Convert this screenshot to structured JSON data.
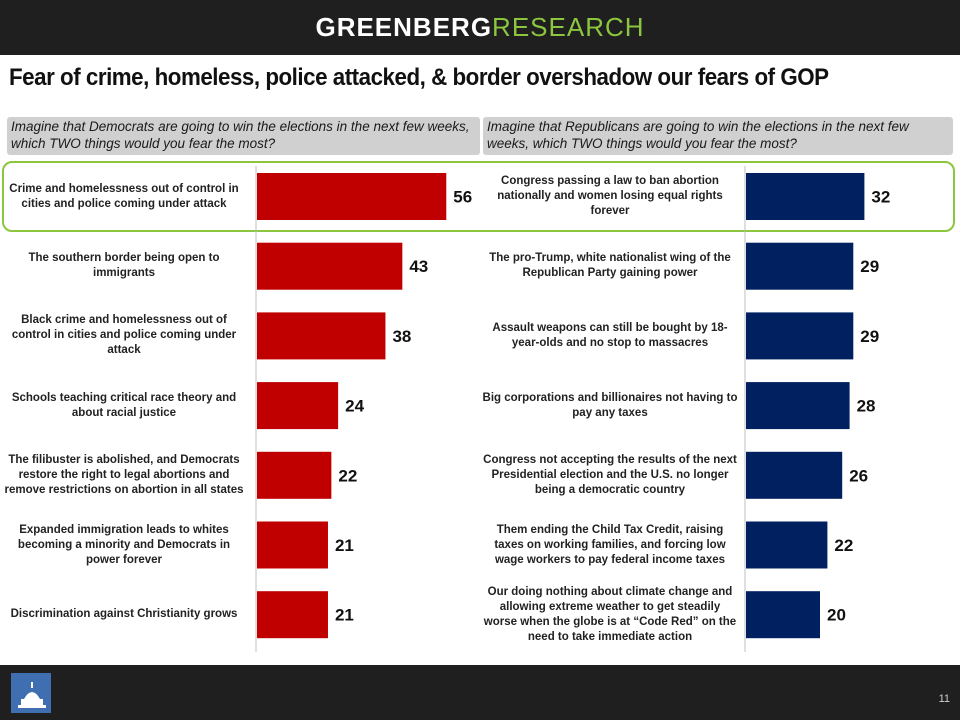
{
  "brand": {
    "part1": "GREENBERG",
    "part2": "RESEARCH"
  },
  "title": "Fear of crime, homeless, police attacked, & border overshadow our fears of GOP",
  "page_number": "11",
  "chart_data": [
    {
      "type": "bar",
      "orientation": "horizontal",
      "question": "Imagine that Democrats are going to win the elections in the next few weeks, which TWO things would you fear the most?",
      "categories": [
        "Crime and homelessness out of control in cities and police coming under attack",
        "The southern border being open to immigrants",
        "Black crime and homelessness out of control in cities and police coming under attack",
        "Schools teaching critical race theory and about racial justice",
        "The filibuster is abolished, and Democrats restore the right to legal abortions and remove restrictions on abortion in all states",
        "Expanded immigration leads to whites becoming a minority and Democrats in power forever",
        "Discrimination against Christianity grows"
      ],
      "values": [
        56,
        43,
        38,
        24,
        22,
        21,
        21
      ],
      "value_labels": [
        "56",
        "43",
        "38",
        "24",
        "22",
        "21",
        "21"
      ],
      "color": "#c00000",
      "xlim": [
        0,
        100
      ]
    },
    {
      "type": "bar",
      "orientation": "horizontal",
      "question": "Imagine that Republicans are going to win the elections in the next few weeks, which TWO things would you fear the most?",
      "categories": [
        "Congress passing a law to ban abortion nationally and women losing equal rights forever",
        "The pro-Trump, white nationalist wing of the Republican Party gaining power",
        "Assault weapons can still be bought by 18-year-olds and no stop to massacres",
        "Big corporations and billionaires not having to pay any taxes",
        "Congress not accepting the results of the next Presidential election and the U.S. no longer being a democratic country",
        "Them ending the Child Tax Credit, raising taxes on working families, and forcing low wage workers to pay federal income taxes",
        "Our doing nothing about climate change and allowing extreme weather to get steadily worse when the globe is at “Code Red” on the need to take immediate action"
      ],
      "values": [
        32,
        29,
        29,
        28,
        26,
        22,
        20
      ],
      "value_labels": [
        "32",
        "29",
        "29",
        "28",
        "26",
        "22",
        "20"
      ],
      "color": "#002060",
      "xlim": [
        0,
        100
      ]
    }
  ]
}
